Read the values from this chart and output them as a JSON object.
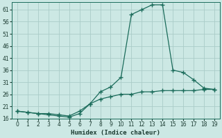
{
  "xlabel": "Humidex (Indice chaleur)",
  "bg_color": "#cce8e4",
  "grid_color": "#aaccc8",
  "line_color": "#1a6b5a",
  "xlim": [
    -0.5,
    19.5
  ],
  "ylim": [
    16,
    64
  ],
  "xticks": [
    0,
    1,
    2,
    3,
    4,
    5,
    6,
    7,
    8,
    9,
    10,
    11,
    12,
    13,
    14,
    15,
    16,
    17,
    18,
    19
  ],
  "yticks": [
    16,
    21,
    26,
    31,
    36,
    41,
    46,
    51,
    56,
    61
  ],
  "line1_x": [
    0,
    1,
    2,
    3,
    4,
    5,
    6,
    7,
    8,
    9,
    10,
    11,
    12,
    13,
    14,
    15,
    16,
    17,
    18,
    19
  ],
  "line1_y": [
    19,
    18.5,
    18,
    17.5,
    17,
    16.5,
    18,
    22,
    27,
    29,
    33,
    59,
    61,
    63,
    63,
    36,
    35,
    32,
    28.5,
    28
  ],
  "line2_x": [
    0,
    1,
    2,
    3,
    4,
    5,
    6,
    7,
    8,
    9,
    10,
    11,
    12,
    13,
    14,
    15,
    16,
    17,
    18,
    19
  ],
  "line2_y": [
    19,
    18.5,
    18,
    18,
    17.5,
    17,
    19,
    22,
    24,
    25,
    26,
    26,
    27,
    27,
    27.5,
    27.5,
    27.5,
    27.5,
    28,
    28
  ]
}
